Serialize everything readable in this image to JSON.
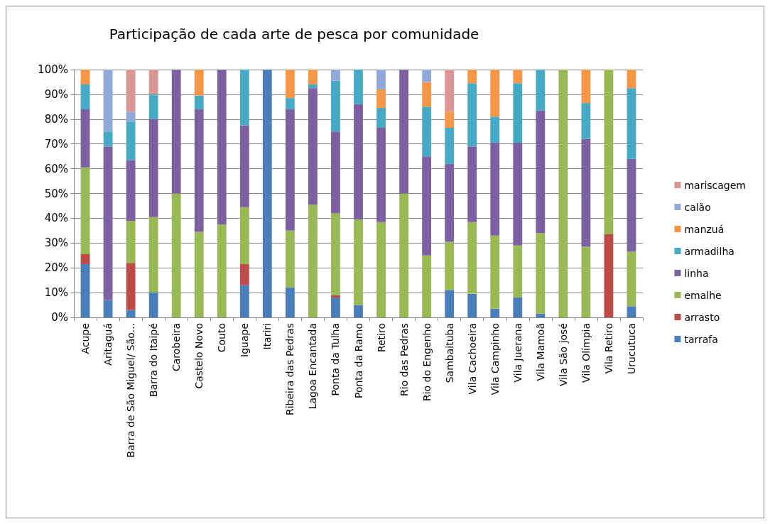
{
  "chart_data": {
    "type": "bar",
    "stacked": true,
    "title": "Participação de cada arte de pesca por comunidade",
    "categories": [
      "Acupe",
      "Aritaguá",
      "Barra de São Miguel/ São...",
      "Barra do Itaipé",
      "Carobeira",
      "Castelo Novo",
      "Couto",
      "Iguape",
      "Itariri",
      "Ribeira das Pedras",
      "Lagoa Encantada",
      "Ponta da Tulha",
      "Ponta da Ramo",
      "Retiro",
      "Rio das Pedras",
      "Rio do Engenho",
      "Sambaituba",
      "Vila Cachoeira",
      "Vila Campinho",
      "Vila Juerana",
      "Vila Mamoã",
      "Vila São josé",
      "Vila Olímpia",
      "Vila Retiro",
      "Urucutuca"
    ],
    "series": [
      {
        "name": "tarrafa",
        "color": "#4a7ebb",
        "values": [
          21.5,
          7,
          3,
          10,
          0,
          0,
          0,
          13,
          100,
          12,
          0,
          8,
          5,
          0,
          0,
          0,
          11,
          9.5,
          3.5,
          8,
          1.5,
          0,
          0,
          0,
          4.5
        ]
      },
      {
        "name": "arrasto",
        "color": "#be4b48",
        "values": [
          4,
          0,
          19,
          0,
          0,
          0,
          0,
          8.5,
          0,
          0,
          0,
          1,
          0,
          0,
          0,
          0,
          0,
          0,
          0,
          0,
          0,
          0,
          0,
          33.5,
          0
        ]
      },
      {
        "name": "emalhe",
        "color": "#98b954",
        "values": [
          35,
          0,
          17,
          30.5,
          50,
          34.5,
          37.5,
          23,
          0,
          23,
          45.5,
          33,
          34.5,
          38.5,
          50,
          25,
          19.5,
          29,
          29.5,
          21,
          32.5,
          100,
          28.5,
          66.5,
          22
        ]
      },
      {
        "name": "linha",
        "color": "#7d60a0",
        "values": [
          23.5,
          62,
          24.5,
          39.5,
          50,
          49.5,
          62.5,
          33,
          0,
          49,
          47,
          33,
          46.5,
          38,
          50,
          40,
          31.5,
          30.5,
          37.5,
          41.5,
          49.5,
          0,
          43.5,
          0,
          37.5
        ]
      },
      {
        "name": "armadilha",
        "color": "#46aac5",
        "values": [
          10,
          6,
          15.5,
          10,
          0,
          5.5,
          0,
          22.5,
          0,
          4.5,
          1.5,
          20.5,
          14,
          8,
          0,
          20,
          14.5,
          25.5,
          10.5,
          24,
          16.5,
          0,
          14.5,
          0,
          28.5
        ]
      },
      {
        "name": "manzuá",
        "color": "#f79646",
        "values": [
          6,
          0,
          0,
          0,
          0,
          10.5,
          0,
          0,
          0,
          11.5,
          6,
          0,
          0,
          7.5,
          0,
          10,
          6.5,
          5.5,
          19,
          5.5,
          0,
          0,
          13.5,
          0,
          7.5
        ]
      },
      {
        "name": "calão",
        "color": "#8fa9d8",
        "values": [
          0,
          25,
          4,
          0,
          0,
          0,
          0,
          0,
          0,
          0,
          0,
          4.5,
          0,
          8,
          0,
          5,
          0,
          0,
          0,
          0,
          0,
          0,
          0,
          0,
          0
        ]
      },
      {
        "name": "mariscagem",
        "color": "#d99694",
        "values": [
          0,
          0,
          17,
          10,
          0,
          0,
          0,
          0,
          0,
          0,
          0,
          0,
          0,
          0,
          0,
          0,
          17,
          0,
          0,
          0,
          0,
          0,
          0,
          0,
          0
        ]
      }
    ],
    "ylim": [
      0,
      100
    ],
    "yticks": [
      {
        "value": 0,
        "label": "0%"
      },
      {
        "value": 10,
        "label": "10%"
      },
      {
        "value": 20,
        "label": "20%"
      },
      {
        "value": 30,
        "label": "30%"
      },
      {
        "value": 40,
        "label": "40%"
      },
      {
        "value": 50,
        "label": "50%"
      },
      {
        "value": 60,
        "label": "60%"
      },
      {
        "value": 70,
        "label": "70%"
      },
      {
        "value": 80,
        "label": "80%"
      },
      {
        "value": 90,
        "label": "90%"
      },
      {
        "value": 100,
        "label": "100%"
      }
    ],
    "grid": "y",
    "legend": "right"
  }
}
